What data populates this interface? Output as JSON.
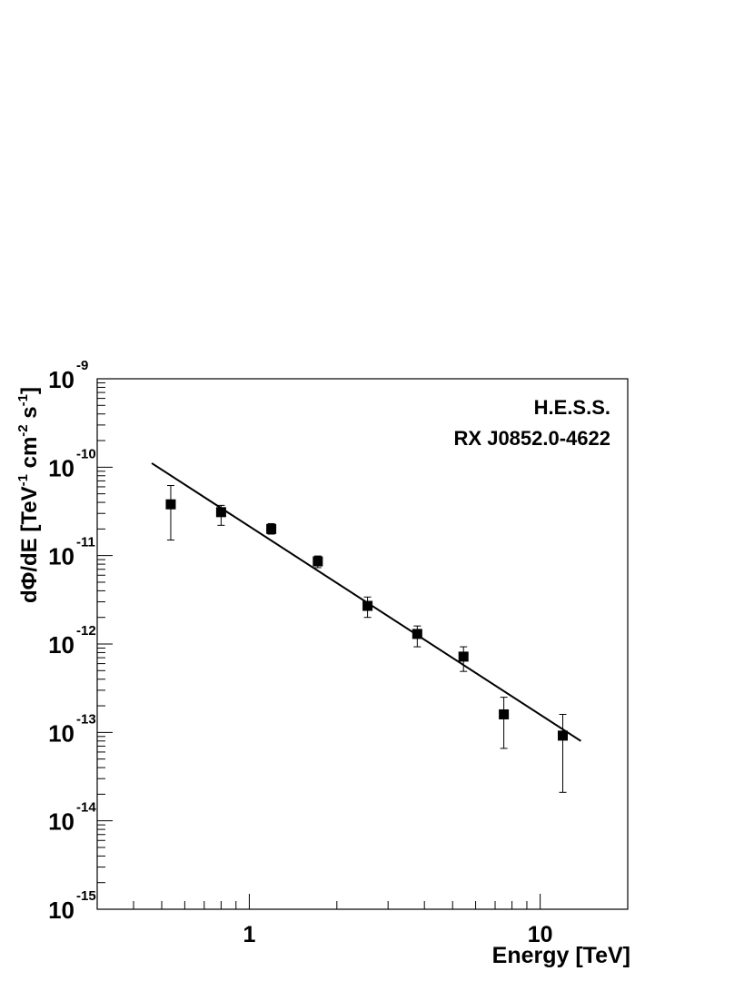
{
  "chart_data": {
    "type": "scatter",
    "annotations": [
      "H.E.S.S.",
      "RX J0852.0-4622"
    ],
    "xlabel": "Energy [TeV]",
    "ylabel": [
      "dΦ/dE [TeV",
      "-1",
      " cm",
      "-2",
      " s",
      "-1",
      "]"
    ],
    "log_x": true,
    "log_y": true,
    "xlim": [
      0.3,
      20
    ],
    "ylim": [
      1e-15,
      1e-09
    ],
    "xticks": [
      1,
      10
    ],
    "xminor_ticks": [
      0.4,
      0.5,
      0.6,
      0.7,
      0.8,
      0.9,
      2,
      3,
      4,
      5,
      6,
      7,
      8,
      9,
      20
    ],
    "yticks": [
      {
        "value": 1e-15,
        "label": "10",
        "exponent": "-15"
      },
      {
        "value": 1e-14,
        "label": "10",
        "exponent": "-14"
      },
      {
        "value": 1e-13,
        "label": "10",
        "exponent": "-13"
      },
      {
        "value": 1e-12,
        "label": "10",
        "exponent": "-12"
      },
      {
        "value": 1e-11,
        "label": "10",
        "exponent": "-11"
      },
      {
        "value": 1e-10,
        "label": "10",
        "exponent": "-10"
      },
      {
        "value": 1e-09,
        "label": "10",
        "exponent": "-9"
      }
    ],
    "yminor_ticks": [
      2e-15,
      3e-15,
      4e-15,
      5e-15,
      6e-15,
      7e-15,
      8e-15,
      9e-15,
      2e-14,
      3e-14,
      4e-14,
      5e-14,
      6e-14,
      7e-14,
      8e-14,
      9e-14,
      2e-13,
      3e-13,
      4e-13,
      5e-13,
      6e-13,
      7e-13,
      8e-13,
      9e-13,
      2e-12,
      3e-12,
      4e-12,
      5e-12,
      6e-12,
      7e-12,
      8e-12,
      9e-12,
      2e-11,
      3e-11,
      4e-11,
      5e-11,
      6e-11,
      7e-11,
      8e-11,
      9e-11,
      2e-10,
      3e-10,
      4e-10,
      5e-10,
      6e-10,
      7e-10,
      8e-10,
      9e-10
    ],
    "series": [
      {
        "color": "#000000",
        "x": [
          0.537,
          0.8,
          1.19,
          1.72,
          2.55,
          3.78,
          5.45,
          7.5,
          11.96
        ],
        "values": [
          3.8e-11,
          3.1e-11,
          2e-11,
          8.6e-12,
          2.7e-12,
          1.3e-12,
          7.2e-13,
          1.6e-13,
          9.2e-14
        ],
        "y_high": [
          6.2e-11,
          3.7e-11,
          2.3e-11,
          9.9e-12,
          3.4e-12,
          1.6e-12,
          9.3e-13,
          2.5e-13,
          1.6e-13
        ],
        "y_low": [
          1.5e-11,
          2.2e-11,
          1.75e-11,
          7.3e-12,
          2e-12,
          9.3e-13,
          4.9e-13,
          6.6e-14,
          2.1e-14
        ]
      }
    ],
    "fit": {
      "color": "#000000",
      "x": [
        0.462,
        13.8
      ],
      "values": [
        1.11e-10,
        8e-14
      ]
    }
  }
}
